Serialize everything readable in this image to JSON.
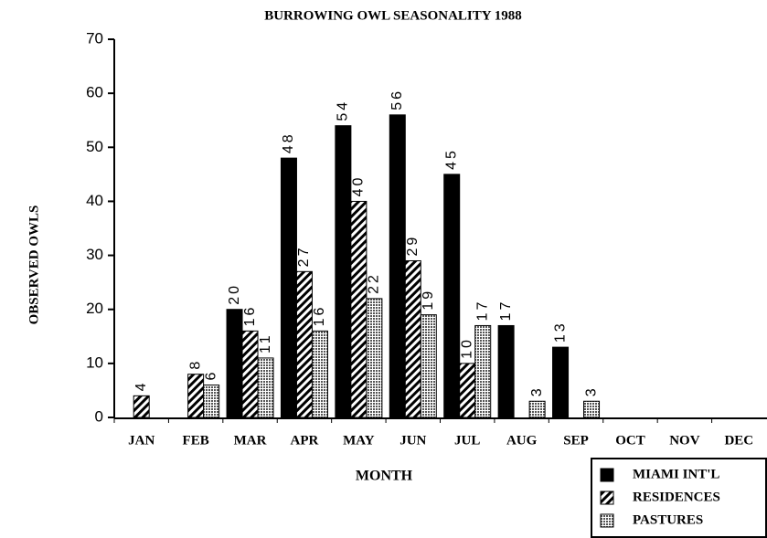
{
  "chart_data": {
    "type": "bar",
    "title": "BURROWING OWL SEASONALITY 1988",
    "x_label": "MONTH",
    "y_label": "OBSERVED OWLS",
    "categories": [
      "JAN",
      "FEB",
      "MAR",
      "APR",
      "MAY",
      "JUN",
      "JUL",
      "AUG",
      "SEP",
      "OCT",
      "NOV",
      "DEC"
    ],
    "series": [
      {
        "name": "MIAMI INT'L",
        "color": "#000000",
        "pattern": "solid",
        "values": [
          null,
          null,
          20,
          48,
          54,
          56,
          45,
          17,
          13,
          null,
          null,
          null
        ]
      },
      {
        "name": "RESIDENCES",
        "color": "#000000",
        "pattern": "hatch",
        "values": [
          4,
          8,
          16,
          27,
          40,
          29,
          10,
          null,
          null,
          null,
          null,
          null
        ]
      },
      {
        "name": "PASTURES",
        "color": "#000000",
        "pattern": "dots",
        "values": [
          null,
          6,
          11,
          16,
          22,
          19,
          17,
          3,
          3,
          null,
          null,
          null
        ]
      }
    ],
    "ylim": [
      0,
      70
    ],
    "yticks": [
      0,
      10,
      20,
      30,
      40,
      50,
      60,
      70
    ],
    "legend": "bottom-right"
  }
}
